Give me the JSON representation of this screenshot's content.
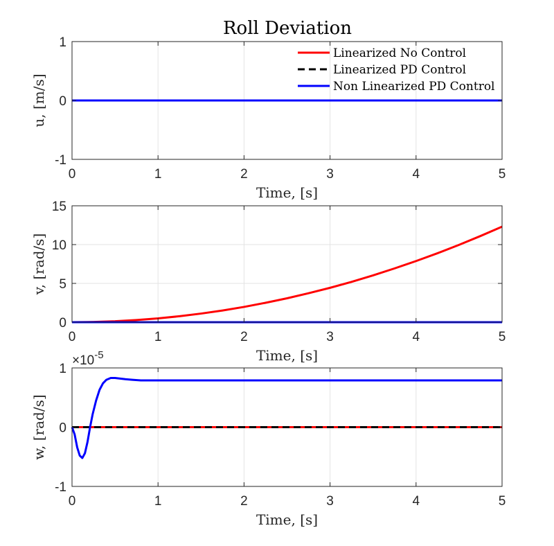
{
  "figure": {
    "title": "Roll Deviation",
    "legend": {
      "placement": "top-right of first subplot",
      "entries": [
        {
          "label": "Linearized No Control",
          "color": "#ff0000",
          "style": "solid"
        },
        {
          "label": "Linearized PD Control",
          "color": "#000000",
          "style": "dashed"
        },
        {
          "label": "Non Linearized PD Control",
          "color": "#0000ff",
          "style": "solid"
        }
      ]
    }
  },
  "chart_data": [
    {
      "type": "line",
      "xlabel": "Time, [s]",
      "ylabel": "u, [m/s]",
      "xlim": [
        0,
        5
      ],
      "ylim": [
        -1,
        1
      ],
      "xticks": [
        "0",
        "1",
        "2",
        "3",
        "4",
        "5"
      ],
      "yticks": [
        "-1",
        "0",
        "1"
      ],
      "exponent": "",
      "grid": true,
      "series": [
        {
          "name": "Linearized No Control",
          "color": "#ff0000",
          "style": "solid",
          "x": [
            0,
            5
          ],
          "y": [
            0,
            0
          ]
        },
        {
          "name": "Linearized PD Control",
          "color": "#000000",
          "style": "dashed",
          "x": [
            0,
            5
          ],
          "y": [
            0,
            0
          ]
        },
        {
          "name": "Non Linearized PD Control",
          "color": "#0000ff",
          "style": "solid",
          "x": [
            0,
            5
          ],
          "y": [
            0,
            0
          ]
        }
      ]
    },
    {
      "type": "line",
      "xlabel": "Time, [s]",
      "ylabel": "v, [rad/s]",
      "xlim": [
        0,
        5
      ],
      "ylim": [
        0,
        15
      ],
      "xticks": [
        "0",
        "1",
        "2",
        "3",
        "4",
        "5"
      ],
      "yticks": [
        "0",
        "5",
        "10",
        "15"
      ],
      "exponent": "",
      "grid": true,
      "series": [
        {
          "name": "Linearized No Control",
          "color": "#ff0000",
          "style": "solid",
          "x": [
            0,
            0.25,
            0.5,
            0.75,
            1,
            1.25,
            1.5,
            1.75,
            2,
            2.25,
            2.5,
            2.75,
            3,
            3.25,
            3.5,
            3.75,
            4,
            4.25,
            4.5,
            4.75,
            5
          ],
          "y": [
            0,
            0.03,
            0.12,
            0.28,
            0.49,
            0.77,
            1.11,
            1.51,
            1.97,
            2.5,
            3.08,
            3.73,
            4.43,
            5.2,
            6.03,
            6.93,
            7.88,
            8.89,
            9.97,
            11.11,
            12.31
          ]
        },
        {
          "name": "Linearized PD Control",
          "color": "#000000",
          "style": "dashed",
          "x": [
            0,
            5
          ],
          "y": [
            0,
            0
          ]
        },
        {
          "name": "Non Linearized PD Control",
          "color": "#0000ff",
          "style": "solid",
          "x": [
            0,
            5
          ],
          "y": [
            0,
            0
          ]
        }
      ]
    },
    {
      "type": "line",
      "xlabel": "Time, [s]",
      "ylabel": "w, [rad/s]",
      "xlim": [
        0,
        5
      ],
      "ylim": [
        -1,
        1
      ],
      "xticks": [
        "0",
        "1",
        "2",
        "3",
        "4",
        "5"
      ],
      "yticks": [
        "-1",
        "0",
        "1"
      ],
      "exponent": "×10",
      "exponent_power": "-5",
      "grid": true,
      "series": [
        {
          "name": "Linearized No Control",
          "color": "#ff0000",
          "style": "solid",
          "x": [
            0,
            5
          ],
          "y": [
            0,
            0
          ]
        },
        {
          "name": "Linearized PD Control",
          "color": "#000000",
          "style": "dashed",
          "x": [
            0,
            5
          ],
          "y": [
            0,
            0
          ]
        },
        {
          "name": "Non Linearized PD Control",
          "color": "#0000ff",
          "style": "solid",
          "x": [
            0,
            0.03,
            0.06,
            0.09,
            0.12,
            0.15,
            0.18,
            0.21,
            0.24,
            0.28,
            0.32,
            0.36,
            0.4,
            0.45,
            0.5,
            0.56,
            0.62,
            0.7,
            0.8,
            1.0,
            1.5,
            2.0,
            3.0,
            4.0,
            5.0
          ],
          "y": [
            0,
            -0.12,
            -0.34,
            -0.48,
            -0.52,
            -0.44,
            -0.25,
            0.0,
            0.22,
            0.45,
            0.63,
            0.74,
            0.8,
            0.83,
            0.83,
            0.82,
            0.81,
            0.8,
            0.79,
            0.79,
            0.79,
            0.79,
            0.79,
            0.79,
            0.79
          ]
        }
      ]
    }
  ]
}
